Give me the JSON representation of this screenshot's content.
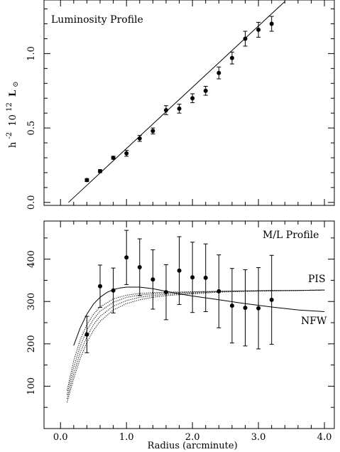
{
  "chart_data": [
    {
      "type": "scatter",
      "title": "Luminosity Profile",
      "ylabel": {
        "h": "h",
        "h_exp": "-2",
        "ten": "10",
        "ten_exp": "12",
        "L": "L",
        "sun": "⊙"
      },
      "xlim": [
        -0.25,
        4.15
      ],
      "ylim": [
        -0.02,
        1.36
      ],
      "x_ticks": [
        0.0,
        1.0,
        2.0,
        3.0,
        4.0
      ],
      "y_ticks": [
        0.0,
        0.5,
        1.0
      ],
      "y_tick_labels": [
        "0.0",
        "0.5",
        "1.0"
      ],
      "series": [
        {
          "x": [
            0.4,
            0.6,
            0.8,
            1.0,
            1.2,
            1.4,
            1.6,
            1.8,
            2.0,
            2.2,
            2.4,
            2.6,
            2.8,
            3.0,
            3.2
          ],
          "y": [
            0.15,
            0.21,
            0.3,
            0.33,
            0.43,
            0.48,
            0.62,
            0.63,
            0.7,
            0.75,
            0.87,
            0.97,
            1.1,
            1.16,
            1.2
          ],
          "err": [
            0.01,
            0.01,
            0.01,
            0.02,
            0.02,
            0.02,
            0.03,
            0.03,
            0.03,
            0.03,
            0.04,
            0.04,
            0.05,
            0.05,
            0.05
          ]
        }
      ],
      "fit_line": {
        "x": [
          0.12,
          3.4
        ],
        "y": [
          0.0,
          1.35
        ]
      }
    },
    {
      "type": "scatter",
      "title": "M/L Profile",
      "xlabel": "Radius (arcminute)",
      "xlim": [
        -0.25,
        4.15
      ],
      "ylim": [
        0,
        490
      ],
      "x_ticks": [
        0.0,
        1.0,
        2.0,
        3.0,
        4.0
      ],
      "x_tick_labels": [
        "0.0",
        "1.0",
        "2.0",
        "3.0",
        "4.0"
      ],
      "y_ticks": [
        100,
        200,
        300,
        400
      ],
      "y_tick_labels": [
        "100",
        "200",
        "300",
        "400"
      ],
      "series": [
        {
          "x": [
            0.4,
            0.6,
            0.8,
            1.0,
            1.2,
            1.4,
            1.6,
            1.8,
            2.0,
            2.2,
            2.4,
            2.6,
            2.8,
            3.0,
            3.2
          ],
          "y": [
            222,
            336,
            326,
            404,
            381,
            352,
            322,
            373,
            357,
            356,
            324,
            290,
            285,
            284,
            304
          ],
          "err": [
            43,
            50,
            53,
            64,
            67,
            70,
            65,
            80,
            83,
            80,
            86,
            88,
            90,
            96,
            105
          ]
        }
      ],
      "model_labels": {
        "pis": "PIS",
        "nfw": "NFW"
      },
      "models": [
        {
          "style": "solid",
          "x": [
            0.2,
            0.3,
            0.4,
            0.5,
            0.6,
            0.7,
            0.8,
            0.9,
            1.0,
            1.2,
            1.4,
            1.6,
            1.8,
            2.0,
            2.4,
            2.8,
            3.2,
            3.6,
            4.0
          ],
          "y": [
            196,
            238,
            270,
            294,
            310,
            321,
            328,
            332,
            334,
            334,
            330,
            324,
            318,
            313,
            304,
            295,
            287,
            280,
            276
          ]
        },
        {
          "style": "dotted",
          "x": [
            0.1,
            0.2,
            0.3,
            0.4,
            0.5,
            0.6,
            0.8,
            1.0,
            1.2,
            1.4,
            1.6,
            2.0,
            2.4,
            2.8,
            3.2,
            3.6,
            4.0
          ],
          "y": [
            90,
            160,
            210,
            245,
            270,
            287,
            306,
            315,
            319,
            321,
            322,
            323,
            324,
            325,
            326,
            326,
            327
          ]
        },
        {
          "style": "dotted",
          "x": [
            0.1,
            0.2,
            0.3,
            0.4,
            0.5,
            0.6,
            0.8,
            1.0,
            1.2,
            1.4,
            1.6,
            2.0,
            2.4,
            2.8,
            3.2,
            3.6,
            4.0
          ],
          "y": [
            80,
            145,
            195,
            232,
            258,
            277,
            298,
            310,
            315,
            318,
            320,
            322,
            324,
            325,
            326,
            326,
            327
          ]
        },
        {
          "style": "dotted",
          "x": [
            0.1,
            0.2,
            0.3,
            0.4,
            0.5,
            0.6,
            0.8,
            1.0,
            1.2,
            1.4,
            1.6,
            2.0,
            2.4,
            2.8,
            3.2,
            3.6,
            4.0
          ],
          "y": [
            70,
            130,
            180,
            217,
            245,
            265,
            289,
            302,
            310,
            314,
            317,
            320,
            323,
            324,
            325,
            326,
            327
          ]
        },
        {
          "style": "dotted",
          "x": [
            0.1,
            0.2,
            0.3,
            0.4,
            0.5,
            0.6,
            0.8,
            1.0,
            1.2,
            1.4,
            1.6,
            2.0,
            2.4,
            2.8,
            3.2,
            3.6,
            4.0
          ],
          "y": [
            62,
            118,
            166,
            203,
            232,
            253,
            280,
            295,
            304,
            310,
            314,
            318,
            322,
            324,
            325,
            326,
            327
          ]
        }
      ]
    }
  ]
}
